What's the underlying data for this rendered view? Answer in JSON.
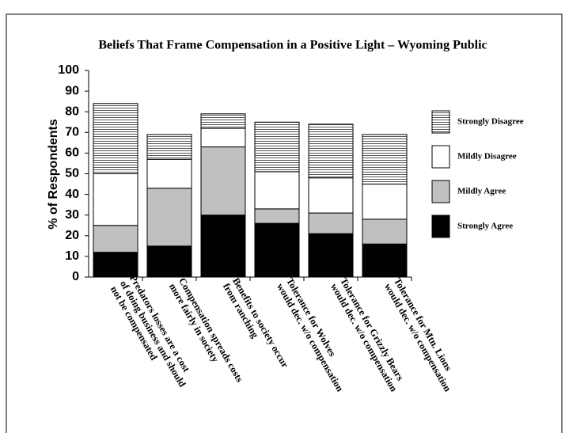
{
  "chart_data": {
    "type": "stacked_bar",
    "title": "Beliefs That Frame Compensation in a Positive Light – Wyoming Public",
    "y_label": "% of Respondents",
    "categories": [
      [
        "Predators losses are a cost",
        "of doing business and should",
        "not be compensated"
      ],
      [
        "Compensation spreads costs",
        "more fairly in society"
      ],
      [
        "Benefits to society occur",
        "from ranching"
      ],
      [
        "Tolerance for Wolves",
        "would dec. w/o compensation"
      ],
      [
        "Tolerance for Grizzly Bears",
        "would dec. w/o compensation"
      ],
      [
        "Tolerance for Mtn. Lions",
        "would dec. w/o compensation"
      ]
    ],
    "series": [
      {
        "name": "Strongly Agree",
        "color": "#000000",
        "values": [
          12,
          15,
          30,
          26,
          21,
          16
        ]
      },
      {
        "name": "Mildly Agree",
        "color": "#c0c0c0",
        "values": [
          13,
          28,
          33,
          7,
          10,
          12
        ]
      },
      {
        "name": "Mildly Disagree",
        "color": "#ffffff",
        "values": [
          25,
          14,
          9,
          18,
          17,
          17
        ]
      },
      {
        "name": "Strongly Disagree",
        "color": "#ffffff",
        "pattern": "horizontal-lines",
        "values": [
          34,
          12,
          7,
          24,
          26,
          24
        ]
      }
    ],
    "ylim": [
      0,
      100
    ],
    "yticks": [
      0,
      10,
      20,
      30,
      40,
      50,
      60,
      70,
      80,
      90,
      100
    ],
    "legend": "right"
  }
}
